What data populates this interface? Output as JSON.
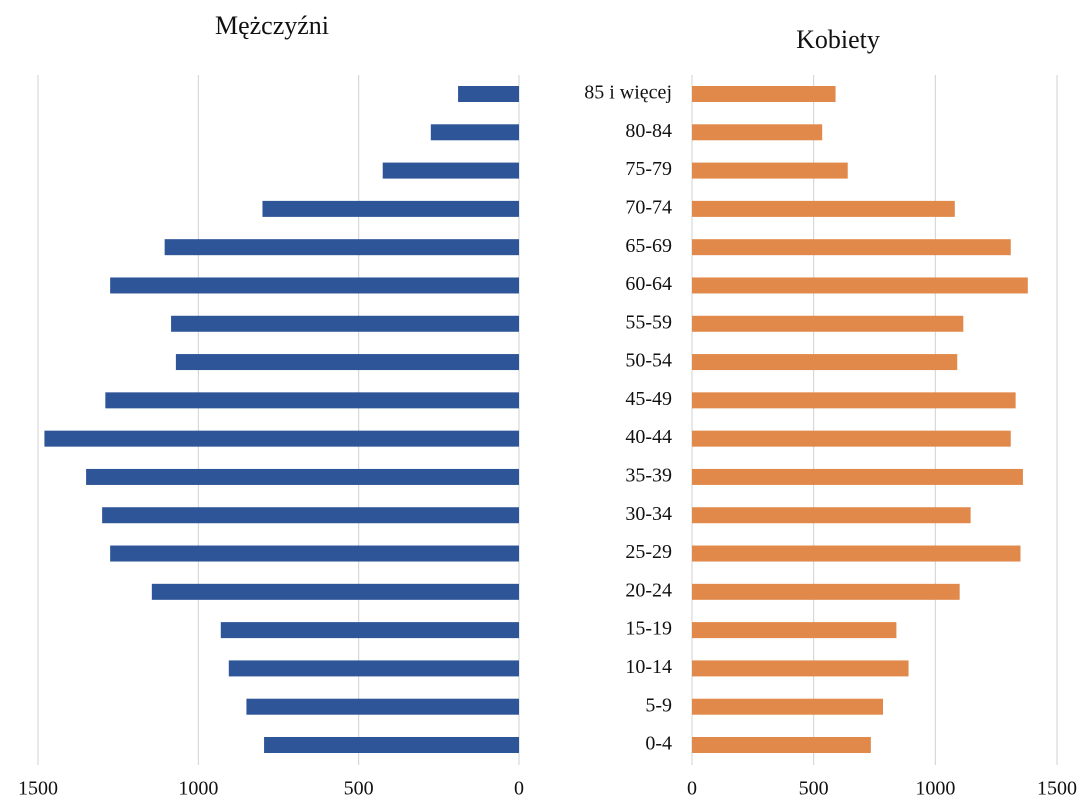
{
  "chart_data": [
    {
      "type": "bar",
      "orientation": "horizontal",
      "title": "Mężczyźni",
      "color": "#2d5597",
      "values": [
        190,
        275,
        425,
        800,
        1105,
        1275,
        1085,
        1070,
        1290,
        1480,
        1350,
        1300,
        1275,
        1145,
        930,
        905,
        850,
        795
      ],
      "xlim": [
        1500,
        0
      ],
      "xticks": [
        1500,
        1000,
        500,
        0
      ],
      "grid": true
    },
    {
      "type": "bar",
      "orientation": "horizontal",
      "title": "Kobiety",
      "color": "#e0894a",
      "categories": [
        "85 i więcej",
        "80-84",
        "75-79",
        "70-74",
        "65-69",
        "60-64",
        "55-59",
        "50-54",
        "45-49",
        "40-44",
        "35-39",
        "30-34",
        "25-29",
        "20-24",
        "15-19",
        "10-14",
        "5-9",
        "0-4"
      ],
      "values": [
        590,
        535,
        640,
        1080,
        1310,
        1380,
        1115,
        1090,
        1330,
        1310,
        1360,
        1145,
        1350,
        1100,
        840,
        890,
        785,
        735
      ],
      "xlim": [
        0,
        1500
      ],
      "xticks": [
        0,
        500,
        1000,
        1500
      ],
      "grid": true
    }
  ]
}
